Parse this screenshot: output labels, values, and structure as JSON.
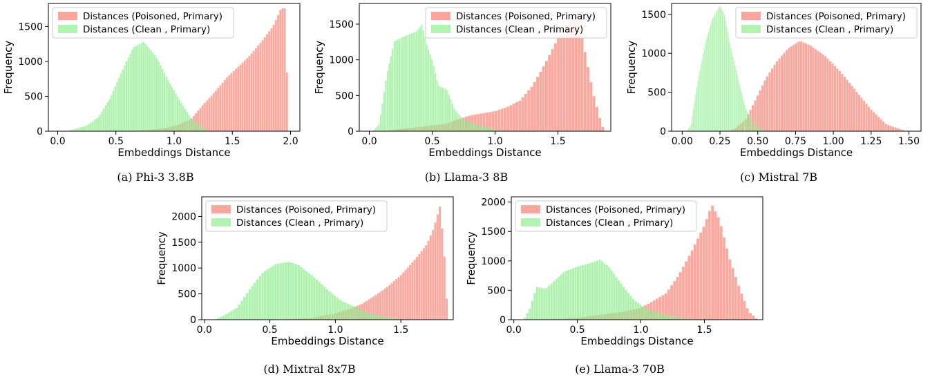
{
  "colors": {
    "poisoned": "#fa8072",
    "clean": "#90ee90",
    "frame": "#000000"
  },
  "chart_data": [
    {
      "type": "histogram",
      "caption": "(a) Phi-3 3.8B",
      "xlabel": "Embeddings Distance",
      "ylabel": "Frequency",
      "xlim": [
        -0.08,
        2.08
      ],
      "ylim": [
        0,
        1830
      ],
      "xticks": [
        {
          "v": 0,
          "label": "0.0"
        },
        {
          "v": 0.5,
          "label": "0.5"
        },
        {
          "v": 1,
          "label": "1.0"
        },
        {
          "v": 1.5,
          "label": "1.5"
        },
        {
          "v": 2,
          "label": "2.0"
        }
      ],
      "yticks": [
        {
          "v": 0,
          "label": "0"
        },
        {
          "v": 500,
          "label": "500"
        },
        {
          "v": 1000,
          "label": "1000"
        },
        {
          "v": 1500,
          "label": "1500"
        }
      ],
      "legend_position": "top-left",
      "series": [
        {
          "name": "Distances (Poisoned, Primary)",
          "color": "poisoned",
          "x_range": [
            0.55,
            1.98
          ],
          "keypoints": [
            [
              0.55,
              0
            ],
            [
              0.75,
              15
            ],
            [
              0.95,
              50
            ],
            [
              1.05,
              100
            ],
            [
              1.15,
              180
            ],
            [
              1.25,
              380
            ],
            [
              1.35,
              560
            ],
            [
              1.45,
              760
            ],
            [
              1.55,
              920
            ],
            [
              1.65,
              1080
            ],
            [
              1.75,
              1280
            ],
            [
              1.85,
              1500
            ],
            [
              1.92,
              1760
            ],
            [
              1.96,
              1760
            ],
            [
              1.98,
              0
            ]
          ]
        },
        {
          "name": "Distances (Clean , Primary)",
          "color": "clean",
          "x_range": [
            0.08,
            1.3
          ],
          "keypoints": [
            [
              0.08,
              0
            ],
            [
              0.15,
              30
            ],
            [
              0.25,
              80
            ],
            [
              0.35,
              200
            ],
            [
              0.45,
              470
            ],
            [
              0.55,
              850
            ],
            [
              0.65,
              1200
            ],
            [
              0.74,
              1280
            ],
            [
              0.85,
              1060
            ],
            [
              0.95,
              730
            ],
            [
              1.05,
              440
            ],
            [
              1.15,
              180
            ],
            [
              1.25,
              50
            ],
            [
              1.3,
              0
            ]
          ]
        }
      ]
    },
    {
      "type": "histogram",
      "caption": "(b) Llama-3 8B",
      "xlabel": "Embeddings Distance",
      "ylabel": "Frequency",
      "xlim": [
        -0.08,
        1.92
      ],
      "ylim": [
        0,
        1790
      ],
      "xticks": [
        {
          "v": 0,
          "label": "0.0"
        },
        {
          "v": 0.5,
          "label": "0.5"
        },
        {
          "v": 1,
          "label": "1.0"
        },
        {
          "v": 1.5,
          "label": "1.5"
        }
      ],
      "yticks": [
        {
          "v": 0,
          "label": "0"
        },
        {
          "v": 500,
          "label": "500"
        },
        {
          "v": 1000,
          "label": "1000"
        },
        {
          "v": 1500,
          "label": "1500"
        }
      ],
      "legend_position": "top-right",
      "series": [
        {
          "name": "Distances (Poisoned, Primary)",
          "color": "poisoned",
          "x_range": [
            0.1,
            1.87
          ],
          "keypoints": [
            [
              0.1,
              0
            ],
            [
              0.3,
              40
            ],
            [
              0.6,
              100
            ],
            [
              0.8,
              220
            ],
            [
              1.0,
              280
            ],
            [
              1.1,
              340
            ],
            [
              1.2,
              430
            ],
            [
              1.3,
              640
            ],
            [
              1.4,
              950
            ],
            [
              1.5,
              1300
            ],
            [
              1.6,
              1540
            ],
            [
              1.65,
              1660
            ],
            [
              1.72,
              1080
            ],
            [
              1.78,
              540
            ],
            [
              1.84,
              150
            ],
            [
              1.87,
              0
            ]
          ]
        },
        {
          "name": "Distances (Clean , Primary)",
          "color": "clean",
          "x_range": [
            0.03,
            1.05
          ],
          "keypoints": [
            [
              0.03,
              0
            ],
            [
              0.08,
              100
            ],
            [
              0.14,
              800
            ],
            [
              0.2,
              1260
            ],
            [
              0.28,
              1330
            ],
            [
              0.38,
              1400
            ],
            [
              0.42,
              1500
            ],
            [
              0.46,
              1200
            ],
            [
              0.5,
              1000
            ],
            [
              0.55,
              640
            ],
            [
              0.62,
              580
            ],
            [
              0.68,
              300
            ],
            [
              0.75,
              160
            ],
            [
              0.85,
              100
            ],
            [
              0.95,
              50
            ],
            [
              1.05,
              0
            ]
          ]
        }
      ]
    },
    {
      "type": "histogram",
      "caption": "(c) Mistral 7B",
      "xlabel": "Embeddings Distance",
      "ylabel": "Frequency",
      "xlim": [
        -0.07,
        1.58
      ],
      "ylim": [
        0,
        1640
      ],
      "xticks": [
        {
          "v": 0,
          "label": "0.00"
        },
        {
          "v": 0.25,
          "label": "0.25"
        },
        {
          "v": 0.5,
          "label": "0.50"
        },
        {
          "v": 0.75,
          "label": "0.75"
        },
        {
          "v": 1,
          "label": "1.00"
        },
        {
          "v": 1.25,
          "label": "1.25"
        },
        {
          "v": 1.5,
          "label": "1.50"
        }
      ],
      "yticks": [
        {
          "v": 0,
          "label": "0"
        },
        {
          "v": 500,
          "label": "500"
        },
        {
          "v": 1000,
          "label": "1000"
        },
        {
          "v": 1500,
          "label": "1500"
        }
      ],
      "legend_position": "top-right",
      "series": [
        {
          "name": "Distances (Poisoned, Primary)",
          "color": "poisoned",
          "x_range": [
            0.3,
            1.5
          ],
          "keypoints": [
            [
              0.3,
              0
            ],
            [
              0.35,
              30
            ],
            [
              0.42,
              150
            ],
            [
              0.48,
              380
            ],
            [
              0.55,
              660
            ],
            [
              0.62,
              880
            ],
            [
              0.7,
              1060
            ],
            [
              0.78,
              1160
            ],
            [
              0.85,
              1100
            ],
            [
              0.95,
              960
            ],
            [
              1.05,
              760
            ],
            [
              1.15,
              520
            ],
            [
              1.25,
              280
            ],
            [
              1.35,
              90
            ],
            [
              1.45,
              20
            ],
            [
              1.5,
              0
            ]
          ]
        },
        {
          "name": "Distances (Clean , Primary)",
          "color": "clean",
          "x_range": [
            0.03,
            0.56
          ],
          "keypoints": [
            [
              0.03,
              0
            ],
            [
              0.06,
              80
            ],
            [
              0.1,
              600
            ],
            [
              0.15,
              1100
            ],
            [
              0.2,
              1440
            ],
            [
              0.25,
              1610
            ],
            [
              0.28,
              1500
            ],
            [
              0.32,
              1100
            ],
            [
              0.38,
              600
            ],
            [
              0.42,
              300
            ],
            [
              0.48,
              80
            ],
            [
              0.56,
              0
            ]
          ]
        }
      ]
    },
    {
      "type": "histogram",
      "caption": "(d) Mixtral 8x7B",
      "xlabel": "Embeddings Distance",
      "ylabel": "Frequency",
      "xlim": [
        -0.02,
        1.9
      ],
      "ylim": [
        0,
        2380
      ],
      "xticks": [
        {
          "v": 0,
          "label": "0.0"
        },
        {
          "v": 0.5,
          "label": "0.5"
        },
        {
          "v": 1,
          "label": "1.0"
        },
        {
          "v": 1.5,
          "label": "1.5"
        }
      ],
      "yticks": [
        {
          "v": 0,
          "label": "0"
        },
        {
          "v": 500,
          "label": "500"
        },
        {
          "v": 1000,
          "label": "1000"
        },
        {
          "v": 1500,
          "label": "1500"
        },
        {
          "v": 2000,
          "label": "2000"
        }
      ],
      "legend_position": "top-left",
      "series": [
        {
          "name": "Distances (Poisoned, Primary)",
          "color": "poisoned",
          "x_range": [
            0.55,
            1.86
          ],
          "keypoints": [
            [
              0.55,
              0
            ],
            [
              0.8,
              30
            ],
            [
              1.0,
              120
            ],
            [
              1.1,
              200
            ],
            [
              1.2,
              300
            ],
            [
              1.3,
              460
            ],
            [
              1.4,
              640
            ],
            [
              1.5,
              860
            ],
            [
              1.6,
              1140
            ],
            [
              1.7,
              1460
            ],
            [
              1.75,
              1760
            ],
            [
              1.8,
              2200
            ],
            [
              1.83,
              1400
            ],
            [
              1.86,
              0
            ]
          ]
        },
        {
          "name": "Distances (Clean , Primary)",
          "color": "clean",
          "x_range": [
            0.08,
            1.56
          ],
          "keypoints": [
            [
              0.08,
              0
            ],
            [
              0.15,
              80
            ],
            [
              0.25,
              230
            ],
            [
              0.35,
              600
            ],
            [
              0.45,
              920
            ],
            [
              0.55,
              1080
            ],
            [
              0.65,
              1120
            ],
            [
              0.72,
              1060
            ],
            [
              0.85,
              800
            ],
            [
              0.95,
              560
            ],
            [
              1.05,
              360
            ],
            [
              1.15,
              250
            ],
            [
              1.25,
              130
            ],
            [
              1.4,
              40
            ],
            [
              1.56,
              0
            ]
          ]
        }
      ]
    },
    {
      "type": "histogram",
      "caption": "(e) Llama-3 70B",
      "xlabel": "Embeddings Distance",
      "ylabel": "Frequency",
      "xlim": [
        -0.02,
        1.96
      ],
      "ylim": [
        0,
        2090
      ],
      "xticks": [
        {
          "v": 0,
          "label": "0.0"
        },
        {
          "v": 0.5,
          "label": "0.5"
        },
        {
          "v": 1,
          "label": "1.0"
        },
        {
          "v": 1.5,
          "label": "1.5"
        }
      ],
      "yticks": [
        {
          "v": 0,
          "label": "0"
        },
        {
          "v": 500,
          "label": "500"
        },
        {
          "v": 1000,
          "label": "1000"
        },
        {
          "v": 1500,
          "label": "1500"
        },
        {
          "v": 2000,
          "label": "2000"
        }
      ],
      "legend_position": "top-left",
      "series": [
        {
          "name": "Distances (Poisoned, Primary)",
          "color": "poisoned",
          "x_range": [
            0.2,
            1.92
          ],
          "keypoints": [
            [
              0.2,
              0
            ],
            [
              0.5,
              30
            ],
            [
              0.7,
              90
            ],
            [
              0.85,
              130
            ],
            [
              1.0,
              200
            ],
            [
              1.1,
              320
            ],
            [
              1.2,
              450
            ],
            [
              1.3,
              760
            ],
            [
              1.4,
              1160
            ],
            [
              1.5,
              1600
            ],
            [
              1.56,
              1960
            ],
            [
              1.62,
              1700
            ],
            [
              1.7,
              1040
            ],
            [
              1.78,
              520
            ],
            [
              1.85,
              140
            ],
            [
              1.92,
              0
            ]
          ]
        },
        {
          "name": "Distances (Clean , Primary)",
          "color": "clean",
          "x_range": [
            0.08,
            1.5
          ],
          "keypoints": [
            [
              0.08,
              0
            ],
            [
              0.13,
              200
            ],
            [
              0.18,
              560
            ],
            [
              0.25,
              520
            ],
            [
              0.32,
              660
            ],
            [
              0.4,
              820
            ],
            [
              0.5,
              900
            ],
            [
              0.6,
              960
            ],
            [
              0.68,
              1020
            ],
            [
              0.75,
              900
            ],
            [
              0.85,
              600
            ],
            [
              0.95,
              330
            ],
            [
              1.05,
              180
            ],
            [
              1.2,
              80
            ],
            [
              1.35,
              20
            ],
            [
              1.5,
              0
            ]
          ]
        }
      ]
    }
  ]
}
